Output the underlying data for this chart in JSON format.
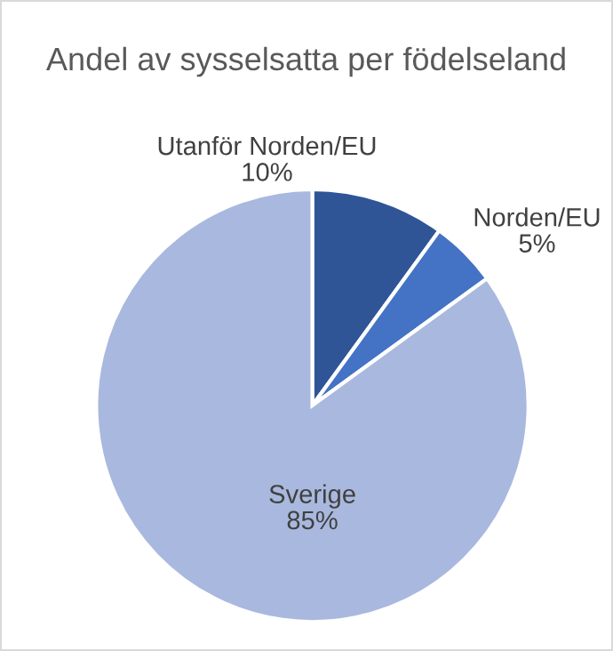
{
  "chart_data": {
    "type": "pie",
    "title": "Andel av sysselsatta per födelseland",
    "categories": [
      "Utanför Norden/EU",
      "Norden/EU",
      "Sverige"
    ],
    "values": [
      10,
      5,
      85
    ],
    "value_labels": [
      "10%",
      "5%",
      "85%"
    ],
    "colors": [
      "#2f5597",
      "#4472c4",
      "#a9b8de"
    ],
    "legend": false
  }
}
